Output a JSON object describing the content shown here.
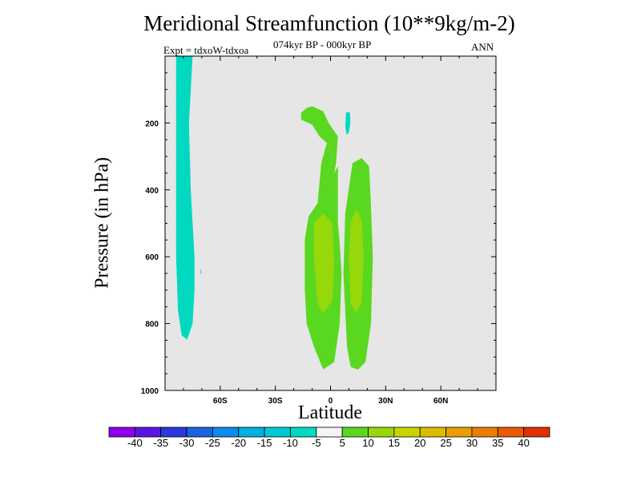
{
  "chart_data": {
    "type": "contour",
    "title": "Meridional Streamfunction (10**9kg/m-2)",
    "subtitle": "074kyr BP - 000kyr BP",
    "expt_label": "Expt = tdxoW-tdxoa",
    "season": "ANN",
    "xlabel": "Latitude",
    "ylabel": "Pressure (in hPa)",
    "xlim": [
      -90,
      90
    ],
    "ylim": [
      1000,
      0
    ],
    "x_ticks": [
      {
        "value": -60,
        "label": "60S"
      },
      {
        "value": -30,
        "label": "30S"
      },
      {
        "value": 0,
        "label": "0"
      },
      {
        "value": 30,
        "label": "30N"
      },
      {
        "value": 60,
        "label": "60N"
      }
    ],
    "y_ticks": [
      {
        "value": 200,
        "label": "200"
      },
      {
        "value": 400,
        "label": "400"
      },
      {
        "value": 600,
        "label": "600"
      },
      {
        "value": 800,
        "label": "800"
      },
      {
        "value": 1000,
        "label": "1000"
      }
    ],
    "plot_background": "#e6e6e6",
    "colorbar": {
      "colors": [
        "#8b00e8",
        "#5a14e0",
        "#2a3ad8",
        "#1a62e0",
        "#0a8ce8",
        "#00aee0",
        "#00c8d4",
        "#00d8c0",
        "#f4f4f4",
        "#5ad820",
        "#96d80a",
        "#c8d400",
        "#dcbc00",
        "#e89e00",
        "#e87e00",
        "#e85a00",
        "#e03000"
      ],
      "labels": [
        "-40",
        "-35",
        "-30",
        "-25",
        "-20",
        "-15",
        "-10",
        "-5",
        "5",
        "10",
        "15",
        "20",
        "25",
        "30",
        "35",
        "40"
      ]
    },
    "regions": [
      {
        "level": "-10 to -5",
        "color": "#00d8c0",
        "points": [
          [
            -84,
            0
          ],
          [
            -75,
            0
          ],
          [
            -76,
            100
          ],
          [
            -77,
            200
          ],
          [
            -76,
            400
          ],
          [
            -74,
            600
          ],
          [
            -74,
            700
          ],
          [
            -75,
            800
          ],
          [
            -78,
            848
          ],
          [
            -81,
            835
          ],
          [
            -83,
            760
          ],
          [
            -84,
            600
          ],
          [
            -84,
            300
          ]
        ]
      },
      {
        "level": "-10 to -5",
        "color": "#00d8c0",
        "points": [
          [
            8.5,
            168
          ],
          [
            10.5,
            168
          ],
          [
            10.8,
            200
          ],
          [
            10,
            228
          ],
          [
            8.8,
            236
          ],
          [
            8,
            210
          ]
        ]
      },
      {
        "level": "-10 to -5",
        "color": "#00d8c0",
        "points": [
          [
            -70.6,
            638
          ],
          [
            -70.2,
            640
          ],
          [
            -70.3,
            652
          ],
          [
            -70.7,
            650
          ]
        ]
      },
      {
        "level": "5 to 10",
        "color": "#5ad820",
        "points": [
          [
            -13,
            155
          ],
          [
            -10,
            150
          ],
          [
            -4,
            165
          ],
          [
            -1,
            200
          ],
          [
            4,
            240
          ],
          [
            3,
            320
          ],
          [
            2,
            350
          ],
          [
            -3,
            380
          ],
          [
            1,
            310
          ],
          [
            -2,
            260
          ],
          [
            -6,
            240
          ],
          [
            -10,
            205
          ],
          [
            -16,
            190
          ],
          [
            -16,
            170
          ]
        ]
      },
      {
        "level": "5 to 10",
        "color": "#5ad820",
        "points": [
          [
            -2,
            260
          ],
          [
            1,
            310
          ],
          [
            -3,
            380
          ],
          [
            2,
            350
          ],
          [
            4,
            330
          ],
          [
            4,
            500
          ],
          [
            5,
            560
          ],
          [
            6,
            650
          ],
          [
            5,
            800
          ],
          [
            2,
            915
          ],
          [
            -4,
            937
          ],
          [
            -9,
            870
          ],
          [
            -13,
            800
          ],
          [
            -14,
            700
          ],
          [
            -14,
            550
          ],
          [
            -12,
            480
          ],
          [
            -7,
            440
          ],
          [
            -5,
            320
          ]
        ]
      },
      {
        "level": "5 to 10",
        "color": "#5ad820",
        "points": [
          [
            12,
            320
          ],
          [
            17,
            305
          ],
          [
            21,
            330
          ],
          [
            22,
            450
          ],
          [
            23,
            600
          ],
          [
            22,
            800
          ],
          [
            19,
            915
          ],
          [
            15,
            938
          ],
          [
            11,
            930
          ],
          [
            9,
            870
          ],
          [
            7,
            650
          ],
          [
            8,
            470
          ]
        ]
      },
      {
        "level": "10 to 15",
        "color": "#96d80a",
        "points": [
          [
            -9,
            500
          ],
          [
            -4,
            470
          ],
          [
            1,
            500
          ],
          [
            2,
            620
          ],
          [
            1,
            730
          ],
          [
            -4,
            770
          ],
          [
            -7,
            740
          ],
          [
            -9,
            600
          ]
        ]
      },
      {
        "level": "10 to 15",
        "color": "#96d80a",
        "points": [
          [
            11,
            495
          ],
          [
            14,
            460
          ],
          [
            17,
            490
          ],
          [
            18,
            600
          ],
          [
            17,
            735
          ],
          [
            14,
            768
          ],
          [
            11,
            740
          ],
          [
            10,
            600
          ]
        ]
      }
    ]
  }
}
